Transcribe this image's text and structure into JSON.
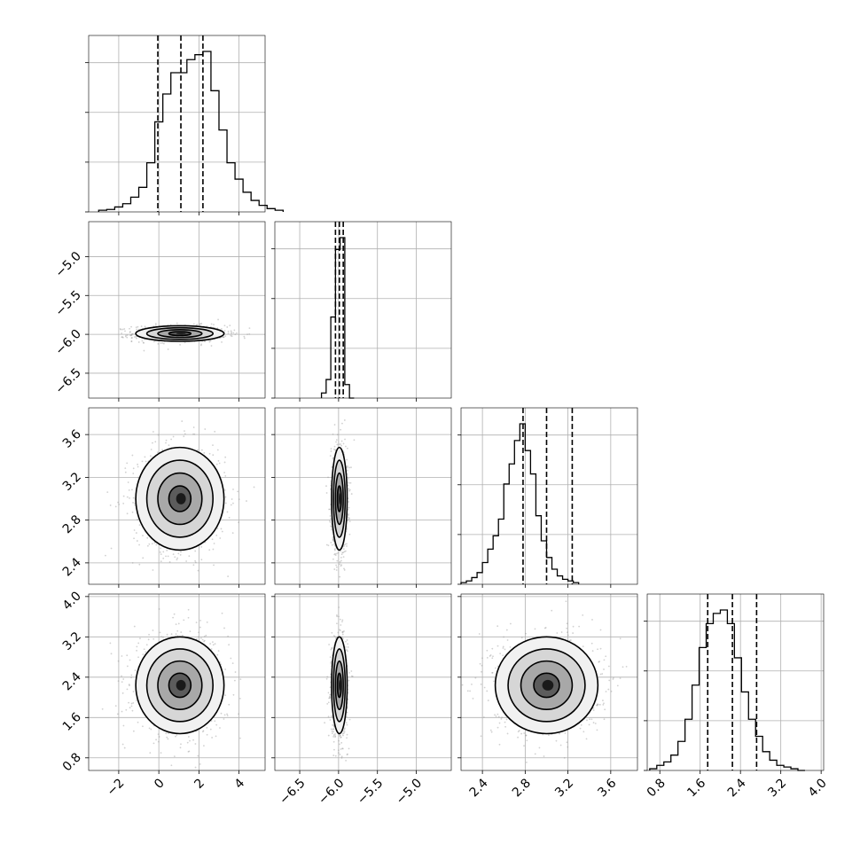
{
  "chart_data": {
    "type": "corner",
    "parameters": [
      {
        "ticks": [
          -2,
          0,
          2,
          4
        ],
        "tick_labels": [
          "−2",
          "0",
          "2",
          "4"
        ],
        "range": [
          -3.5,
          5.3
        ],
        "quantiles": [
          -0.05,
          1.1,
          2.2
        ],
        "hist_edges_start": -3.0,
        "hist_bin_width": 0.4,
        "hist_counts": [
          0.01,
          0.015,
          0.03,
          0.05,
          0.09,
          0.15,
          0.3,
          0.55,
          0.72,
          0.85,
          0.85,
          0.93,
          0.96,
          0.98,
          0.74,
          0.5,
          0.3,
          0.2,
          0.12,
          0.07,
          0.04,
          0.02,
          0.01
        ]
      },
      {
        "ticks": [
          -6.5,
          -6.0,
          -5.5,
          -5.0
        ],
        "tick_labels": [
          "−6.5",
          "−6.0",
          "−5.5",
          "−5.0"
        ],
        "range": [
          -6.82,
          -4.55
        ],
        "quantiles": [
          -6.04,
          -5.99,
          -5.94
        ],
        "hist_edges_start": -6.22,
        "hist_bin_width": 0.06,
        "hist_counts": [
          0.03,
          0.11,
          0.48,
          0.88,
          0.95,
          0.08,
          0.0
        ]
      },
      {
        "ticks": [
          2.4,
          2.8,
          3.2,
          3.6
        ],
        "tick_labels": [
          "2.4",
          "2.8",
          "3.2",
          "3.6"
        ],
        "range": [
          2.2,
          3.85
        ],
        "quantiles": [
          2.78,
          3.0,
          3.24
        ],
        "hist_edges_start": 2.2,
        "hist_bin_width": 0.05,
        "hist_counts": [
          0.01,
          0.02,
          0.04,
          0.07,
          0.13,
          0.21,
          0.29,
          0.39,
          0.6,
          0.72,
          0.86,
          0.96,
          0.8,
          0.66,
          0.41,
          0.26,
          0.16,
          0.09,
          0.05,
          0.03,
          0.02,
          0.01
        ]
      },
      {
        "ticks": [
          0.8,
          1.6,
          2.4,
          3.2,
          4.0
        ],
        "tick_labels": [
          "0.8",
          "1.6",
          "2.4",
          "3.2",
          "4.0"
        ],
        "range": [
          0.55,
          4.05
        ],
        "quantiles": [
          1.75,
          2.24,
          2.72
        ],
        "hist_edges_start": 0.6,
        "hist_bin_width": 0.14,
        "hist_counts": [
          0.01,
          0.03,
          0.05,
          0.09,
          0.17,
          0.3,
          0.5,
          0.72,
          0.86,
          0.92,
          0.94,
          0.86,
          0.66,
          0.46,
          0.3,
          0.2,
          0.11,
          0.06,
          0.03,
          0.02,
          0.01,
          0.0
        ]
      }
    ],
    "means": [
      1.05,
      -5.99,
      3.0,
      2.24
    ],
    "sigmas": [
      1.1,
      0.05,
      0.24,
      0.48
    ],
    "grid": true
  }
}
